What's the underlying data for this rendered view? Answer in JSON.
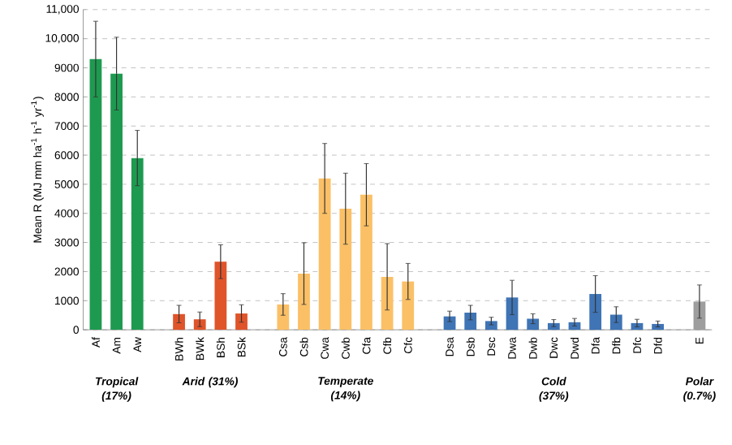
{
  "chart_data": {
    "type": "bar",
    "ylabel": "Mean R (MJ mm ha$^{-1}$ h$^{-1}$ yr$^{-1}$)",
    "categories": [
      "Af",
      "Am",
      "Aw",
      null,
      "BWh",
      "BWk",
      "BSh",
      "BSk",
      null,
      "Csa",
      "Csb",
      "Cwa",
      "Cwb",
      "Cfa",
      "Cfb",
      "Cfc",
      null,
      "Dsa",
      "Dsb",
      "Dsc",
      "Dwa",
      "Dwb",
      "Dwc",
      "Dwd",
      "Dfa",
      "Dfb",
      "Dfc",
      "Dfd",
      null,
      "E"
    ],
    "values": [
      9300,
      8800,
      5900,
      null,
      540,
      360,
      2340,
      560,
      null,
      870,
      1930,
      5200,
      4160,
      4640,
      1820,
      1660,
      null,
      460,
      590,
      300,
      1110,
      380,
      230,
      260,
      1230,
      520,
      230,
      200,
      null,
      970
    ],
    "errors": [
      1300,
      1250,
      950,
      null,
      300,
      250,
      580,
      300,
      null,
      370,
      1060,
      1200,
      1220,
      1070,
      1140,
      620,
      null,
      180,
      250,
      130,
      590,
      170,
      120,
      130,
      630,
      270,
      130,
      100,
      null,
      570
    ],
    "colors": [
      "#1e9a50",
      "#1e9a50",
      "#1e9a50",
      null,
      "#e0542a",
      "#e0542a",
      "#e0542a",
      "#e0542a",
      null,
      "#fbc066",
      "#fbc066",
      "#fbc066",
      "#fbc066",
      "#fbc066",
      "#fbc066",
      "#fbc066",
      null,
      "#3f74b5",
      "#3f74b5",
      "#3f74b5",
      "#3f74b5",
      "#3f74b5",
      "#3f74b5",
      "#3f74b5",
      "#3f74b5",
      "#3f74b5",
      "#3f74b5",
      "#3f74b5",
      null,
      "#9e9e9e"
    ],
    "ylim": [
      0,
      11000
    ],
    "yticks": [
      0,
      1000,
      2000,
      3000,
      4000,
      5000,
      6000,
      7000,
      8000,
      9000,
      {
        "value": 10000,
        "label": "10,000"
      },
      {
        "value": 11000,
        "label": "11,000"
      }
    ],
    "grid": "y",
    "annotations": [
      "Tropical (17%)",
      "Arid (31%)",
      "Temperate (14%)",
      "Cold (37%)",
      "Polar (0.7%)"
    ]
  }
}
